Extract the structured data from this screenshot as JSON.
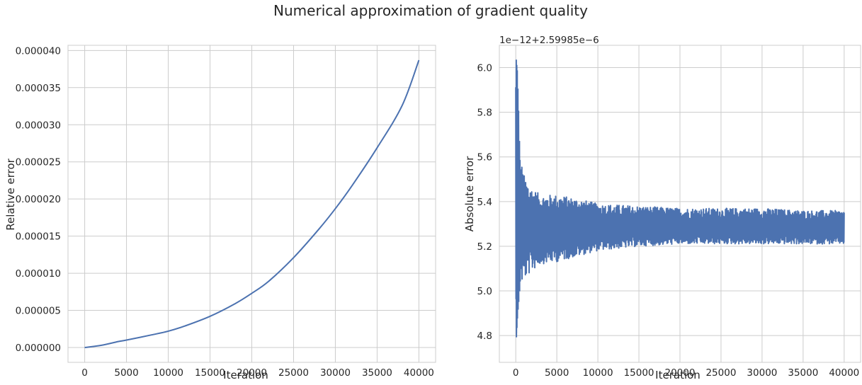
{
  "figure": {
    "title": "Numerical approximation of gradient quality"
  },
  "chart_data": [
    {
      "type": "line",
      "title": "",
      "xlabel": "Iteration",
      "ylabel": "Relative error",
      "xlim": [
        -2000,
        42000
      ],
      "ylim": [
        -2e-06,
        4.07e-05
      ],
      "xticks": [
        0,
        5000,
        10000,
        15000,
        20000,
        25000,
        30000,
        35000,
        40000
      ],
      "xtick_labels": [
        "0",
        "5000",
        "10000",
        "15000",
        "20000",
        "25000",
        "30000",
        "35000",
        "40000"
      ],
      "yticks": [
        0,
        5e-06,
        1e-05,
        1.5e-05,
        2e-05,
        2.5e-05,
        3e-05,
        3.5e-05,
        4e-05
      ],
      "ytick_labels": [
        "0.000000",
        "0.000005",
        "0.000010",
        "0.000015",
        "0.000020",
        "0.000025",
        "0.000030",
        "0.000035",
        "0.000040"
      ],
      "grid": true,
      "color": "#4c72b0",
      "x": [
        0,
        2000,
        4000,
        5000,
        8000,
        10000,
        12000,
        15000,
        18000,
        20000,
        22000,
        25000,
        28000,
        30000,
        32000,
        35000,
        38000,
        40000
      ],
      "y": [
        0,
        3e-07,
        8e-07,
        1e-06,
        1.7e-06,
        2.2e-06,
        2.9e-06,
        4.2e-06,
        5.9e-06,
        7.3e-06,
        8.9e-06,
        1.21e-05,
        1.59e-05,
        1.87e-05,
        2.18e-05,
        2.69e-05,
        3.26e-05,
        3.87e-05
      ]
    },
    {
      "type": "line",
      "title": "",
      "xlabel": "Iteration",
      "ylabel": "Absolute error",
      "offset_text": "1e−12+2.59985e−6",
      "xlim": [
        -2000,
        42000
      ],
      "ylim": [
        4.68,
        6.1
      ],
      "xticks": [
        0,
        5000,
        10000,
        15000,
        20000,
        25000,
        30000,
        35000,
        40000
      ],
      "xtick_labels": [
        "0",
        "5000",
        "10000",
        "15000",
        "20000",
        "25000",
        "30000",
        "35000",
        "40000"
      ],
      "yticks": [
        4.8,
        5.0,
        5.2,
        5.4,
        5.6,
        5.8,
        6.0
      ],
      "ytick_labels": [
        "4.8",
        "5.0",
        "5.2",
        "5.4",
        "5.6",
        "5.8",
        "6.0"
      ],
      "grid": true,
      "color": "#4c72b0",
      "center": 5.28,
      "x": [
        0,
        200,
        500,
        1000,
        2000,
        3000,
        5000,
        8000,
        10000,
        15000,
        20000,
        25000,
        30000,
        35000,
        40000
      ],
      "upper": [
        6.06,
        5.98,
        5.61,
        5.52,
        5.46,
        5.43,
        5.43,
        5.41,
        5.39,
        5.38,
        5.37,
        5.37,
        5.37,
        5.36,
        5.36
      ],
      "lower": [
        4.75,
        4.89,
        5.02,
        5.05,
        5.09,
        5.12,
        5.13,
        5.16,
        5.18,
        5.2,
        5.21,
        5.21,
        5.21,
        5.21,
        5.21
      ]
    }
  ]
}
